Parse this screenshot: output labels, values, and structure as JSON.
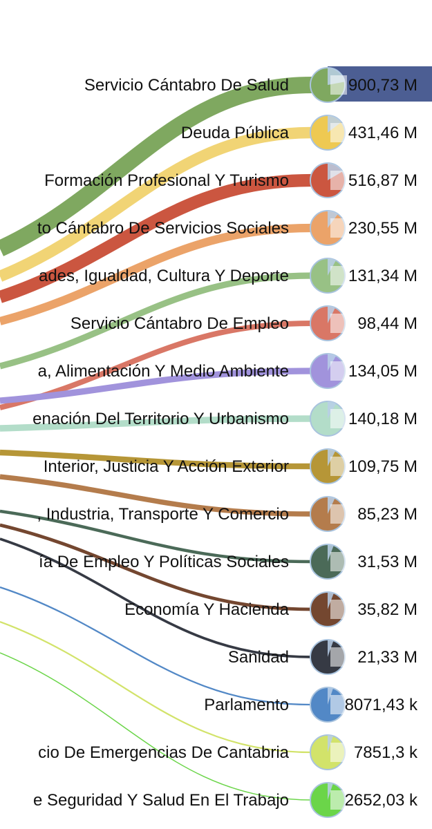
{
  "chart_data": {
    "type": "sankey",
    "unit_note": "values in euros, shown abbreviated (M = millones, k = miles)",
    "nodes": [
      {
        "name": "Servicio Cántabro De Salud",
        "value_label": "900,73 M",
        "value": 900730000,
        "color": "#7fa860"
      },
      {
        "name": "Deuda Pública",
        "value_label": "431,46 M",
        "value": 431460000,
        "color": "#eec952",
        "faded": true
      },
      {
        "name": "Formación Profesional Y Turismo",
        "value_label": "516,87 M",
        "value": 516870000,
        "color": "#cb5640"
      },
      {
        "name": "to Cántabro De Servicios Sociales",
        "value_label": "230,55 M",
        "value": 230550000,
        "color": "#eba369"
      },
      {
        "name": "ades, Igualdad, Cultura Y Deporte",
        "value_label": "131,34 M",
        "value": 131340000,
        "color": "#98c185"
      },
      {
        "name": "Servicio Cántabro De Empleo",
        "value_label": "98,44 M",
        "value": 98440000,
        "color": "#d97766"
      },
      {
        "name": "a, Alimentación Y Medio Ambiente",
        "value_label": "134,05 M",
        "value": 134050000,
        "color": "#a193dc"
      },
      {
        "name": "enación Del Territorio Y Urbanismo",
        "value_label": "140,18 M",
        "value": 140180000,
        "color": "#b3ddc9"
      },
      {
        "name": "Interior, Justicia Y Acción Exterior",
        "value_label": "109,75 M",
        "value": 109750000,
        "color": "#b69637"
      },
      {
        "name": ", Industria, Transporte Y Comercio",
        "value_label": "85,23 M",
        "value": 85230000,
        "color": "#b47c4c"
      },
      {
        "name": "ía De Empleo Y Políticas Sociales",
        "value_label": "31,53 M",
        "value": 31530000,
        "color": "#4b6a58"
      },
      {
        "name": "Economía Y Hacienda",
        "value_label": "35,82 M",
        "value": 35820000,
        "color": "#744730"
      },
      {
        "name": "Sanidad",
        "value_label": "21,33 M",
        "value": 21330000,
        "color": "#363a44"
      },
      {
        "name": "Parlamento",
        "value_label": "8071,43 k",
        "value": 8071430,
        "color": "#5288c6"
      },
      {
        "name": "cio De Emergencias De Cantabria",
        "value_label": "7851,3 k",
        "value": 7851300,
        "color": "#d2e36a"
      },
      {
        "name": "e Seguridad Y Salud En El Trabajo",
        "value_label": "2652,03 k",
        "value": 2652030,
        "color": "#6bd549"
      }
    ],
    "outgoing_top_node_color": "#4c5e93",
    "pie_overlay_color": "#b9cfe8"
  }
}
